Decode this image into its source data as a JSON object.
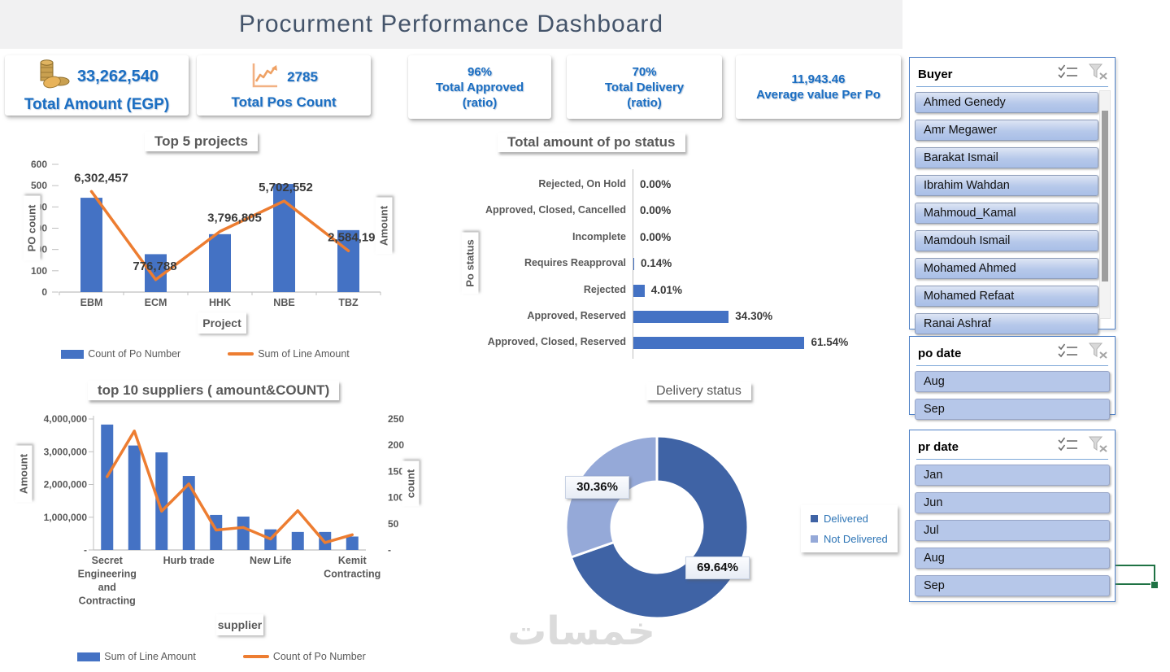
{
  "header": {
    "title": "Procurment Performance Dashboard"
  },
  "kpi_cards": [
    {
      "icon": "coins-icon",
      "value": "33,262,540",
      "label": "Total Amount (EGP)"
    },
    {
      "icon": "trend-chart-icon",
      "value": "2785",
      "label": "Total Pos Count"
    },
    {
      "value": "96%",
      "label": "Total Approved",
      "sublabel": "(ratio)"
    },
    {
      "value": "70%",
      "label": "Total Delivery",
      "sublabel": "(ratio)"
    },
    {
      "value": "11,943.46",
      "label": "Average value Per Po"
    }
  ],
  "chart_data": [
    {
      "id": "top5_projects",
      "type": "bar",
      "subtype": "combo-bar-line",
      "title": "Top 5 projects",
      "categories": [
        "EBM",
        "ECM",
        "HHK",
        "NBE",
        "TBZ"
      ],
      "series": [
        {
          "name": "Count of Po Number",
          "kind": "bar",
          "axis": "left",
          "values": [
            443,
            178,
            272,
            508,
            291
          ]
        },
        {
          "name": "Sum of Line Amount",
          "kind": "line",
          "axis": "right",
          "values": [
            6302457,
            776788,
            3796805,
            5702552,
            2584191
          ]
        }
      ],
      "data_labels": [
        "6,302,457",
        "776,788",
        "3,796,805",
        "5,702,552",
        "2,584,191"
      ],
      "left_axis": {
        "label": "PO count",
        "min": 0,
        "max": 600,
        "ticks": [
          0,
          100,
          200,
          300,
          400,
          500,
          600
        ]
      },
      "right_axis": {
        "label": "Amount",
        "min": 0,
        "max": 8000000,
        "ticks_hidden": true
      },
      "xlabel": "Project",
      "legend_position": "bottom",
      "grid": false
    },
    {
      "id": "po_status",
      "type": "bar",
      "subtype": "bar-horizontal",
      "title": "Total amount of po status",
      "ylabel": "Po status",
      "categories": [
        "Rejected, On Hold",
        "Approved, Closed, Cancelled",
        "Incomplete",
        "Requires Reapproval",
        "Rejected",
        "Approved, Reserved",
        "Approved, Closed, Reserved"
      ],
      "values": [
        0.0,
        0.0,
        0.0,
        0.14,
        4.01,
        34.3,
        61.54
      ],
      "value_labels": [
        "0.00%",
        "0.00%",
        "0.00%",
        "0.14%",
        "4.01%",
        "34.30%",
        "61.54%"
      ],
      "xlim": [
        0,
        70
      ],
      "grid": false
    },
    {
      "id": "top10_suppliers",
      "type": "bar",
      "subtype": "combo-bar-line",
      "title": "top 10 suppliers ( amount&COUNT)",
      "categories": [
        "Secret Engineering and Contracting",
        "",
        "",
        "Hurb trade",
        "",
        "",
        "New Life",
        "",
        "",
        "Kemit Contracting"
      ],
      "category_label_lines": [
        [
          "Secret",
          "Engineering",
          "and",
          "Contracting"
        ],
        null,
        null,
        [
          "Hurb trade"
        ],
        null,
        null,
        [
          "New Life"
        ],
        null,
        null,
        [
          "Kemit",
          "Contracting"
        ]
      ],
      "series": [
        {
          "name": "Sum of Line Amount",
          "kind": "bar",
          "axis": "left",
          "values": [
            3830000,
            3190000,
            2980000,
            2260000,
            1070000,
            1020000,
            630000,
            550000,
            550000,
            410000
          ]
        },
        {
          "name": "Count of Po Number",
          "kind": "line",
          "axis": "right",
          "values": [
            140,
            227,
            74,
            126,
            38,
            43,
            21,
            75,
            14,
            29
          ]
        }
      ],
      "left_axis": {
        "label": "Amount",
        "min": 0,
        "max": 4000000,
        "tick_values": [
          4000000,
          3000000,
          2000000,
          1000000,
          0
        ],
        "tick_labels": [
          "4,000,000",
          "3,000,000",
          "2,000,000",
          "1,000,000",
          "-"
        ]
      },
      "right_axis": {
        "label": "count",
        "min": 0,
        "max": 250,
        "tick_values": [
          250,
          200,
          150,
          100,
          50,
          0
        ],
        "tick_labels": [
          "250",
          "200",
          "150",
          "100",
          "50",
          "-"
        ]
      },
      "xlabel": "supplier",
      "legend_position": "bottom",
      "grid": false
    },
    {
      "id": "delivery_status",
      "type": "pie",
      "subtype": "doughnut",
      "title": "Delivery status",
      "slices": [
        {
          "label": "Delivered",
          "value": 69.64,
          "text": "69.64%",
          "color": "#3F63A5"
        },
        {
          "label": "Not Delivered",
          "value": 30.36,
          "text": "30.36%",
          "color": "#95A9D8"
        }
      ],
      "legend_position": "right"
    }
  ],
  "slicers": {
    "buyer": {
      "title": "Buyer",
      "items": [
        "Ahmed Genedy",
        "Amr Megawer",
        "Barakat Ismail",
        "Ibrahim Wahdan",
        "Mahmoud_Kamal",
        "Mamdouh Ismail",
        "Mohamed Ahmed",
        "Mohamed Refaat",
        "Ranai Ashraf"
      ],
      "has_scrollbar": true,
      "item_style": "gradient"
    },
    "po_date": {
      "title": "po date",
      "items": [
        "Aug",
        "Sep"
      ],
      "has_scrollbar": false,
      "item_style": "flat"
    },
    "pr_date": {
      "title": "pr date",
      "items": [
        "Jan",
        "Jun",
        "Jul",
        "Aug",
        "Sep"
      ],
      "has_scrollbar": false,
      "item_style": "flat"
    }
  },
  "watermark": "خمسات",
  "colors": {
    "bar_blue": "#4472C4",
    "line_orange": "#ED7D31",
    "donut_dark": "#3F63A5",
    "donut_light": "#95A9D8",
    "kpi_text": "#1B6EC2",
    "header_text": "#44546A",
    "chart_text": "#595959",
    "slicer_border": "#4f81c7",
    "excel_selection_green": "#1F7244"
  }
}
